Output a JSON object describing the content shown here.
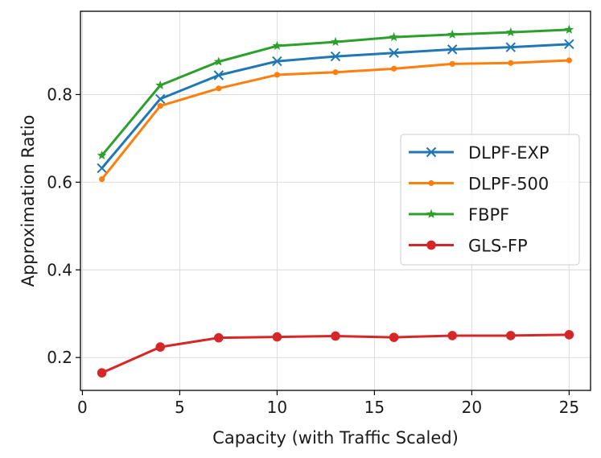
{
  "chart_data": {
    "type": "line",
    "title": "",
    "xlabel": "Capacity (with Traffic Scaled)",
    "ylabel": "Approximation Ratio",
    "xlim": [
      -0.1,
      26.1
    ],
    "ylim": [
      0.125,
      0.99
    ],
    "xticks": [
      0,
      5,
      10,
      15,
      20,
      25
    ],
    "yticks": [
      0.2,
      0.4,
      0.6,
      0.8
    ],
    "grid": true,
    "legend_position": "center-right",
    "x": [
      1,
      4,
      7,
      10,
      13,
      16,
      19,
      22,
      25
    ],
    "series": [
      {
        "name": "DLPF-EXP",
        "color": "#1f77b4",
        "marker": "x",
        "values": [
          0.632,
          0.79,
          0.844,
          0.876,
          0.887,
          0.895,
          0.903,
          0.908,
          0.915
        ]
      },
      {
        "name": "DLPF-500",
        "color": "#ff7f0e",
        "marker": "dot",
        "values": [
          0.607,
          0.774,
          0.814,
          0.845,
          0.851,
          0.859,
          0.87,
          0.872,
          0.878
        ]
      },
      {
        "name": "FBPF",
        "color": "#2ca02c",
        "marker": "star",
        "values": [
          0.661,
          0.821,
          0.875,
          0.911,
          0.92,
          0.931,
          0.937,
          0.942,
          0.948
        ]
      },
      {
        "name": "GLS-FP",
        "color": "#d62728",
        "marker": "circle",
        "values": [
          0.165,
          0.224,
          0.245,
          0.247,
          0.249,
          0.246,
          0.25,
          0.25,
          0.252
        ]
      }
    ]
  }
}
